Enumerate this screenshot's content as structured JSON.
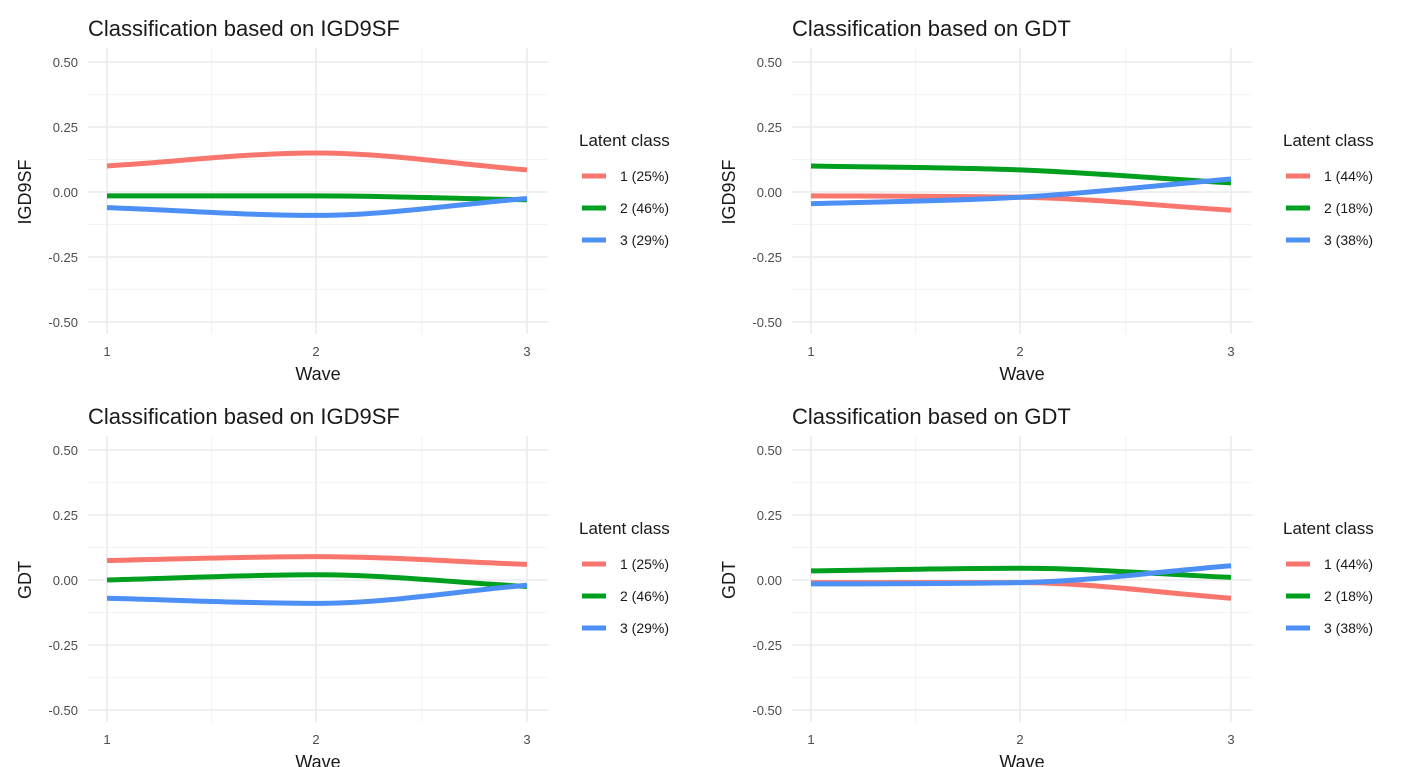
{
  "chart_data": [
    {
      "type": "line",
      "title": "Classification based on IGD9SF",
      "xlabel": "Wave",
      "ylabel": "IGD9SF",
      "x": [
        1,
        2,
        3
      ],
      "ylim": [
        -0.5,
        0.5
      ],
      "yticks": [
        "0.50",
        "0.25",
        "0.00",
        "-0.25",
        "-0.50"
      ],
      "xticks": [
        "1",
        "2",
        "3"
      ],
      "grid": true,
      "legend": {
        "title": "Latent class",
        "placement": "right"
      },
      "series": [
        {
          "name": "1 (25%)",
          "color": "#F8766D",
          "values": [
            0.1,
            0.15,
            0.085
          ]
        },
        {
          "name": "2 (46%)",
          "color": "#00A01E",
          "values": [
            -0.015,
            -0.015,
            -0.03
          ]
        },
        {
          "name": "3 (29%)",
          "color": "#4C8FF5",
          "values": [
            -0.06,
            -0.09,
            -0.025
          ]
        }
      ]
    },
    {
      "type": "line",
      "title": "Classification based on GDT",
      "xlabel": "Wave",
      "ylabel": "IGD9SF",
      "x": [
        1,
        2,
        3
      ],
      "ylim": [
        -0.5,
        0.5
      ],
      "yticks": [
        "0.50",
        "0.25",
        "0.00",
        "-0.25",
        "-0.50"
      ],
      "xticks": [
        "1",
        "2",
        "3"
      ],
      "grid": true,
      "legend": {
        "title": "Latent class",
        "placement": "right"
      },
      "series": [
        {
          "name": "1 (44%)",
          "color": "#F8766D",
          "values": [
            -0.015,
            -0.02,
            -0.07
          ]
        },
        {
          "name": "2 (18%)",
          "color": "#00A01E",
          "values": [
            0.1,
            0.085,
            0.035
          ]
        },
        {
          "name": "3 (38%)",
          "color": "#4C8FF5",
          "values": [
            -0.045,
            -0.02,
            0.05
          ]
        }
      ]
    },
    {
      "type": "line",
      "title": "Classification based on IGD9SF",
      "xlabel": "Wave",
      "ylabel": "GDT",
      "x": [
        1,
        2,
        3
      ],
      "ylim": [
        -0.5,
        0.5
      ],
      "yticks": [
        "0.50",
        "0.25",
        "0.00",
        "-0.25",
        "-0.50"
      ],
      "xticks": [
        "1",
        "2",
        "3"
      ],
      "grid": true,
      "legend": {
        "title": "Latent class",
        "placement": "right"
      },
      "series": [
        {
          "name": "1 (25%)",
          "color": "#F8766D",
          "values": [
            0.075,
            0.09,
            0.06
          ]
        },
        {
          "name": "2 (46%)",
          "color": "#00A01E",
          "values": [
            0.0,
            0.02,
            -0.025
          ]
        },
        {
          "name": "3 (29%)",
          "color": "#4C8FF5",
          "values": [
            -0.07,
            -0.09,
            -0.02
          ]
        }
      ]
    },
    {
      "type": "line",
      "title": "Classification based on GDT",
      "xlabel": "Wave",
      "ylabel": "GDT",
      "x": [
        1,
        2,
        3
      ],
      "ylim": [
        -0.5,
        0.5
      ],
      "yticks": [
        "0.50",
        "0.25",
        "0.00",
        "-0.25",
        "-0.50"
      ],
      "xticks": [
        "1",
        "2",
        "3"
      ],
      "grid": true,
      "legend": {
        "title": "Latent class",
        "placement": "right"
      },
      "series": [
        {
          "name": "1 (44%)",
          "color": "#F8766D",
          "values": [
            -0.01,
            -0.01,
            -0.07
          ]
        },
        {
          "name": "2 (18%)",
          "color": "#00A01E",
          "values": [
            0.035,
            0.045,
            0.01
          ]
        },
        {
          "name": "3 (38%)",
          "color": "#4C8FF5",
          "values": [
            -0.015,
            -0.01,
            0.055
          ]
        }
      ]
    }
  ]
}
